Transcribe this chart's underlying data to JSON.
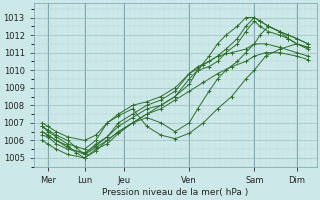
{
  "title": "Pression niveau de la mer( hPa )",
  "ylabel_values": [
    1005,
    1006,
    1007,
    1008,
    1009,
    1010,
    1011,
    1012,
    1013
  ],
  "ylim": [
    1004.5,
    1013.8
  ],
  "xlim": [
    0,
    100
  ],
  "xtick_positions": [
    5,
    18,
    32,
    55,
    78,
    93
  ],
  "xtick_labels": [
    "Mer",
    "Lun",
    "Jeu",
    "Ven",
    "Sam",
    "Dim"
  ],
  "vline_positions": [
    5,
    18,
    32,
    55,
    78,
    93
  ],
  "bg_color": "#cde8e8",
  "grid_major_color": "#9bbfbf",
  "grid_minor_color": "#b5d4d4",
  "line_color": "#2d6e2d",
  "line_width": 0.7,
  "series": [
    {
      "x": [
        3,
        5,
        8,
        12,
        15,
        18,
        22,
        26,
        30,
        35,
        40,
        45,
        50,
        55,
        58,
        62,
        65,
        68,
        72,
        75,
        78,
        80,
        83,
        87,
        90,
        93,
        97
      ],
      "y": [
        1006.8,
        1006.6,
        1006.3,
        1006.0,
        1005.6,
        1005.2,
        1005.8,
        1006.2,
        1007.0,
        1007.5,
        1008.0,
        1008.3,
        1008.8,
        1009.8,
        1010.2,
        1010.5,
        1010.8,
        1011.2,
        1011.8,
        1012.5,
        1013.0,
        1012.8,
        1012.5,
        1012.2,
        1012.0,
        1011.8,
        1011.5
      ]
    },
    {
      "x": [
        3,
        5,
        8,
        12,
        15,
        18,
        22,
        26,
        30,
        35,
        40,
        45,
        50,
        55,
        58,
        62,
        65,
        68,
        72,
        75,
        78,
        80,
        83,
        87,
        90,
        93,
        97
      ],
      "y": [
        1006.5,
        1006.3,
        1006.0,
        1005.7,
        1005.3,
        1005.0,
        1005.5,
        1005.8,
        1006.4,
        1007.0,
        1007.5,
        1008.0,
        1008.5,
        1009.5,
        1010.0,
        1010.2,
        1010.5,
        1011.0,
        1011.5,
        1012.2,
        1012.8,
        1012.5,
        1012.2,
        1012.0,
        1011.8,
        1011.5,
        1011.3
      ]
    },
    {
      "x": [
        3,
        5,
        8,
        12,
        18,
        22,
        26,
        30,
        35,
        40,
        45,
        50,
        55,
        60,
        65,
        70,
        75,
        78,
        82,
        87,
        93,
        97
      ],
      "y": [
        1006.8,
        1006.5,
        1006.2,
        1005.8,
        1005.5,
        1006.0,
        1007.0,
        1007.4,
        1007.8,
        1006.8,
        1006.3,
        1006.1,
        1006.4,
        1007.0,
        1007.8,
        1008.5,
        1009.5,
        1010.0,
        1010.8,
        1011.2,
        1011.5,
        1011.3
      ]
    },
    {
      "x": [
        3,
        5,
        8,
        12,
        18,
        22,
        26,
        30,
        35,
        40,
        45,
        50,
        55,
        58,
        62,
        65,
        68,
        72,
        75,
        78,
        80,
        83,
        87,
        90,
        93,
        97
      ],
      "y": [
        1006.5,
        1006.3,
        1006.0,
        1005.6,
        1005.2,
        1005.6,
        1006.0,
        1006.5,
        1007.0,
        1007.3,
        1007.0,
        1006.5,
        1007.0,
        1007.8,
        1008.8,
        1009.5,
        1010.0,
        1010.5,
        1011.0,
        1011.5,
        1012.0,
        1012.5,
        1012.2,
        1011.8,
        1011.5,
        1011.2
      ]
    },
    {
      "x": [
        3,
        5,
        8,
        12,
        18,
        22,
        26,
        30,
        35,
        40,
        45,
        50,
        55,
        60,
        65,
        70,
        75,
        78,
        82,
        87,
        93,
        97
      ],
      "y": [
        1007.0,
        1006.8,
        1006.5,
        1006.2,
        1006.0,
        1006.3,
        1007.0,
        1007.5,
        1008.0,
        1008.2,
        1008.5,
        1009.0,
        1009.8,
        1010.3,
        1010.8,
        1011.0,
        1011.2,
        1011.5,
        1011.5,
        1011.3,
        1011.0,
        1010.8
      ]
    },
    {
      "x": [
        3,
        5,
        8,
        12,
        18,
        22,
        26,
        30,
        35,
        40,
        45,
        50,
        55,
        58,
        62,
        65,
        68,
        72,
        75,
        78,
        80,
        83,
        87,
        90,
        93,
        97
      ],
      "y": [
        1006.3,
        1006.2,
        1005.8,
        1005.5,
        1005.3,
        1005.7,
        1006.2,
        1006.8,
        1007.3,
        1007.8,
        1008.0,
        1008.5,
        1009.2,
        1010.0,
        1010.8,
        1011.5,
        1012.0,
        1012.5,
        1013.0,
        1013.0,
        1012.8,
        1012.5,
        1012.2,
        1012.0,
        1011.8,
        1011.5
      ]
    },
    {
      "x": [
        3,
        5,
        8,
        12,
        18,
        22,
        26,
        30,
        35,
        40,
        45,
        50,
        55,
        60,
        65,
        70,
        75,
        78,
        82,
        87,
        93,
        97
      ],
      "y": [
        1006.0,
        1005.8,
        1005.5,
        1005.2,
        1005.0,
        1005.4,
        1006.0,
        1006.5,
        1007.0,
        1007.5,
        1007.8,
        1008.3,
        1008.8,
        1009.3,
        1009.8,
        1010.2,
        1010.5,
        1010.8,
        1011.0,
        1011.0,
        1010.8,
        1010.6
      ]
    }
  ]
}
